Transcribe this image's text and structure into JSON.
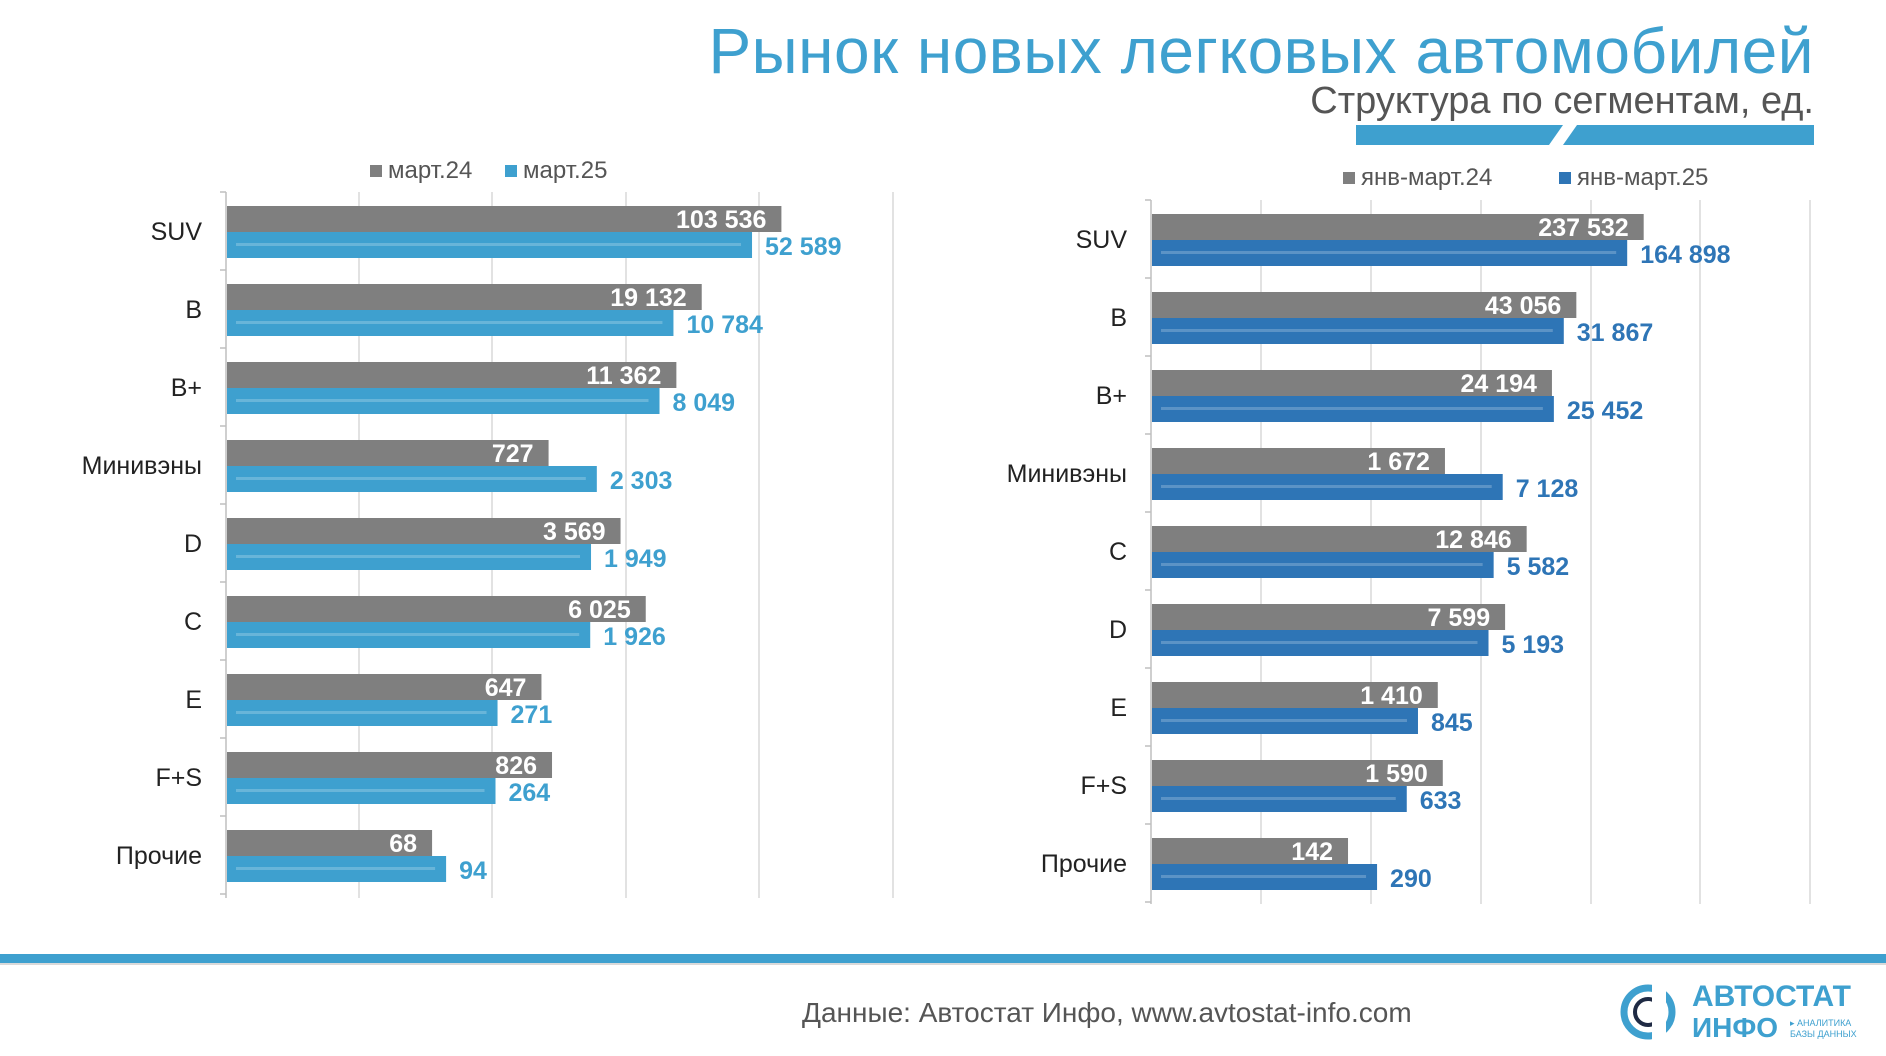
{
  "title": "Рынок новых легковых автомобилей",
  "subtitle": "Структура по сегментам, ед.",
  "footer": "Данные: Автостат Инфо, www.avtostat-info.com",
  "logo": {
    "word1a": "АВТО",
    "word1b": "СТАТ",
    "word2": "ИНФО",
    "tag1": "▸ АНАЛИТИКА",
    "tag2": "БАЗЫ ДАННЫХ"
  },
  "colors": {
    "accent": "#3ea0cf",
    "gray": "#7f7f7f",
    "blue_light": "#3ea0cf",
    "blue_dark": "#2e75b6"
  },
  "chart_data": [
    {
      "type": "bar",
      "orientation": "horizontal",
      "categories": [
        "SUV",
        "B",
        "B+",
        "Минивэны",
        "D",
        "C",
        "E",
        "F+S",
        "Прочие"
      ],
      "series": [
        {
          "name": "март.24",
          "values": [
            103536,
            19132,
            11362,
            727,
            3569,
            6025,
            647,
            826,
            68
          ],
          "labels": [
            "103 536",
            "19 132",
            "11 362",
            "727",
            "3 569",
            "6 025",
            "647",
            "826",
            "68"
          ]
        },
        {
          "name": "март.25",
          "values": [
            52589,
            10784,
            8049,
            2303,
            1949,
            1926,
            271,
            264,
            94
          ],
          "labels": [
            "52 589",
            "10 784",
            "8 049",
            "2 303",
            "1 949",
            "1 926",
            "271",
            "264",
            "94"
          ]
        }
      ],
      "legend": "top",
      "grid": true,
      "axis_scale": "non-linear"
    },
    {
      "type": "bar",
      "orientation": "horizontal",
      "categories": [
        "SUV",
        "B",
        "B+",
        "Минивэны",
        "C",
        "D",
        "E",
        "F+S",
        "Прочие"
      ],
      "series": [
        {
          "name": "янв-март.24",
          "values": [
            237532,
            43056,
            24194,
            1672,
            12846,
            7599,
            1410,
            1590,
            142
          ],
          "labels": [
            "237 532",
            "43 056",
            "24 194",
            "1 672",
            "12 846",
            "7 599",
            "1 410",
            "1 590",
            "142"
          ]
        },
        {
          "name": "янв-март.25",
          "values": [
            164898,
            31867,
            25452,
            7128,
            5582,
            5193,
            845,
            633,
            290
          ],
          "labels": [
            "164 898",
            "31 867",
            "25 452",
            "7 128",
            "5 582",
            "5 193",
            "845",
            "633",
            "290"
          ]
        }
      ],
      "legend": "top",
      "grid": true,
      "axis_scale": "non-linear"
    }
  ]
}
